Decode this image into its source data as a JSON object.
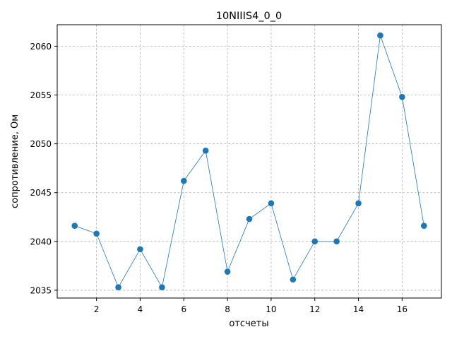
{
  "chart_data": {
    "type": "line",
    "title": "10NIIIS4_0_0",
    "xlabel": "отсчеты",
    "ylabel": "сопротивление, Ом",
    "x": [
      1,
      2,
      3,
      4,
      5,
      6,
      7,
      8,
      9,
      10,
      11,
      12,
      13,
      14,
      15,
      16,
      17
    ],
    "series": [
      {
        "values": [
          2041.6,
          2040.8,
          2035.3,
          2039.2,
          2035.3,
          2046.2,
          2049.3,
          2036.9,
          2042.3,
          2043.9,
          2036.1,
          2040.0,
          2040.0,
          2043.9,
          2061.1,
          2054.8,
          2041.6
        ],
        "color": "#1f77b4",
        "marker": "circle"
      }
    ],
    "xlim": [
      0.2,
      17.8
    ],
    "ylim": [
      2034.2,
      2062.2
    ],
    "xticks": [
      2,
      4,
      6,
      8,
      10,
      12,
      14,
      16
    ],
    "yticks": [
      2035,
      2040,
      2045,
      2050,
      2055,
      2060
    ],
    "grid": true,
    "grid_style": "dashed"
  }
}
